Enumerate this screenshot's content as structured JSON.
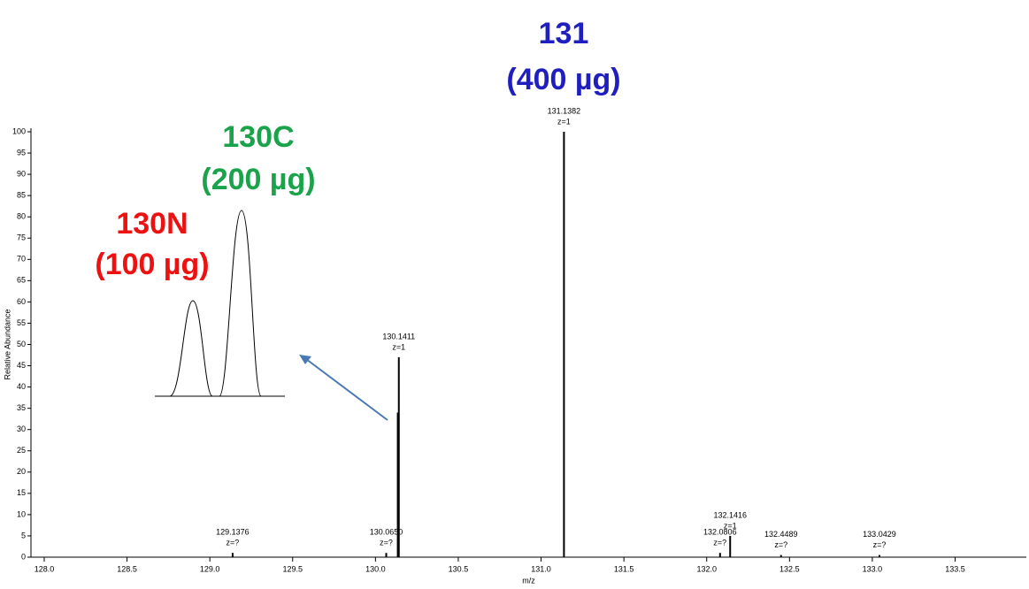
{
  "chart_data": {
    "type": "stem",
    "x_label": "m/z",
    "y_label": "Relative Abundance",
    "x": [
      129.1376,
      130.065,
      130.1348,
      130.1411,
      131.1382,
      132.0806,
      132.1416,
      132.4489,
      133.0429
    ],
    "values": [
      1,
      1,
      34,
      47,
      100,
      1,
      5,
      0.5,
      0.5
    ],
    "peak_labels": [
      [
        "129.1376",
        "z=?"
      ],
      [
        "130.0650",
        "z=?"
      ],
      null,
      [
        "130.1411",
        "z=1"
      ],
      [
        "131.1382",
        "z=1"
      ],
      [
        "132.0806",
        "z=?"
      ],
      [
        "132.1416",
        "z=1"
      ],
      [
        "132.4489",
        "z=?"
      ],
      [
        "133.0429",
        "z=?"
      ]
    ],
    "color": "#000000",
    "xlim": [
      127.92,
      133.93
    ],
    "ylim": [
      0,
      100
    ],
    "xticks": [
      {
        "value": 128,
        "label": "128.0"
      },
      128.5,
      {
        "value": 129,
        "label": "129.0"
      },
      129.5,
      {
        "value": 130,
        "label": "130.0"
      },
      130.5,
      {
        "value": 131,
        "label": "131.0"
      },
      131.5,
      {
        "value": 132,
        "label": "132.0"
      },
      132.5,
      {
        "value": 133,
        "label": "133.0"
      },
      133.5
    ],
    "yticks": [
      0,
      5,
      10,
      15,
      20,
      25,
      30,
      35,
      40,
      45,
      50,
      55,
      60,
      65,
      70,
      75,
      80,
      85,
      90,
      95,
      100
    ],
    "annotations": [
      {
        "lines": [
          "131",
          "(400 µg)"
        ],
        "color": "#1f1fbf"
      },
      {
        "lines": [
          "130C",
          "(200 µg)"
        ],
        "color": "#1aa34a"
      },
      {
        "lines": [
          "130N",
          "(100 µg)"
        ],
        "color": "#ee1111"
      }
    ]
  }
}
